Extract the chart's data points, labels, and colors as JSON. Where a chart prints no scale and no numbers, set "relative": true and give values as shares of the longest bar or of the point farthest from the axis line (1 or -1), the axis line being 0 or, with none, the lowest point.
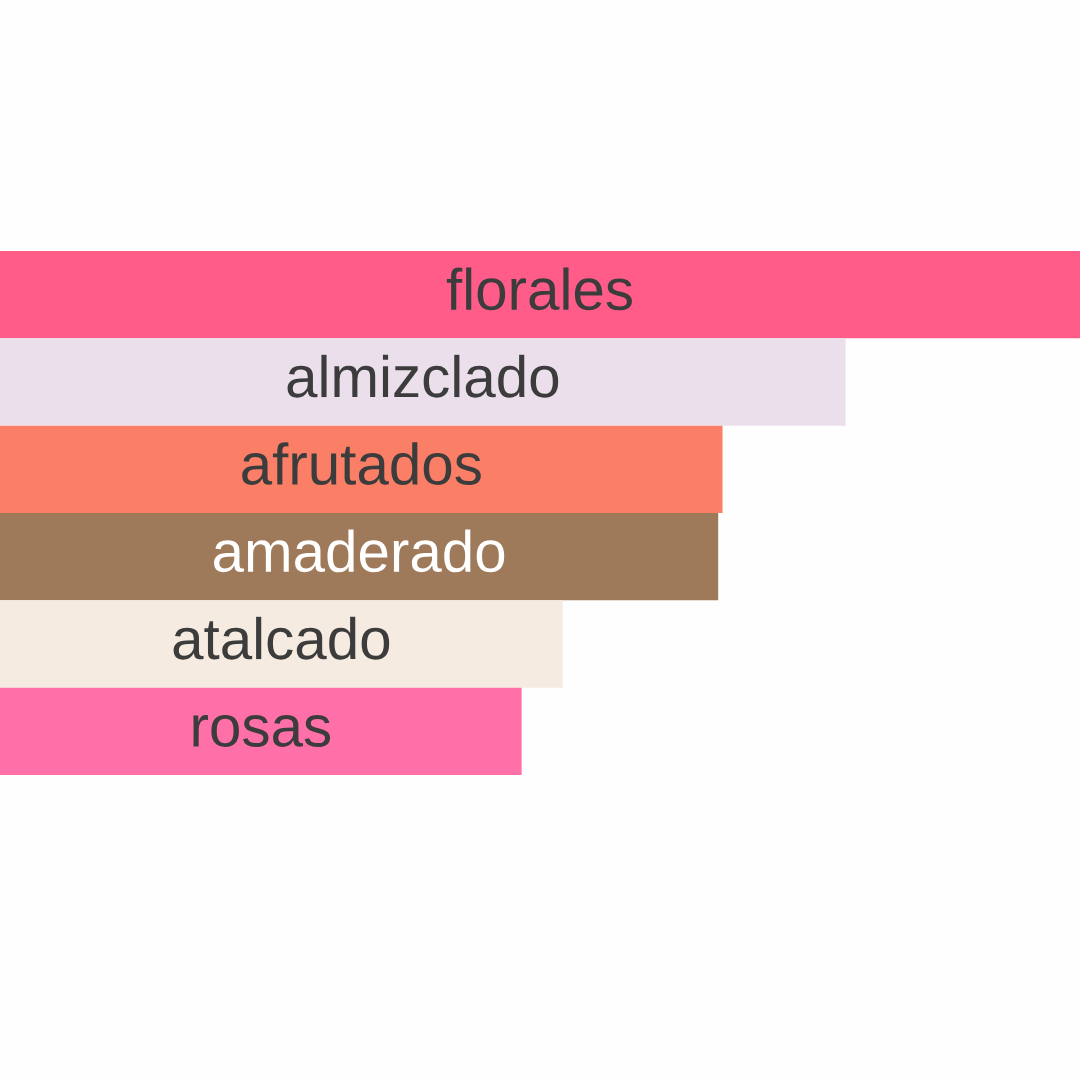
{
  "chart_data": {
    "type": "bar",
    "orientation": "horizontal",
    "relative": true,
    "categories": [
      "florales",
      "almizclado",
      "afrutados",
      "amaderado",
      "atalcado",
      "rosas"
    ],
    "values": [
      1,
      0.783,
      0.669,
      0.665,
      0.521,
      0.483
    ],
    "colors": [
      "#ff5c8a",
      "#ebdfec",
      "#fb7f66",
      "#9e7a5a",
      "#f5ebe1",
      "#ff6fa8"
    ]
  }
}
